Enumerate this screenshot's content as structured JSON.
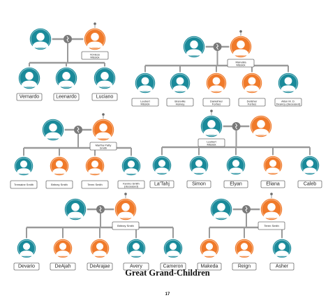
{
  "colors": {
    "male": "#1a8a9a",
    "female": "#f07a2a",
    "line": "#9a9a9a",
    "labelBorder": "#6e6e6e"
  },
  "families": [
    {
      "parents": [
        {
          "gender": "male",
          "name": ""
        },
        {
          "gender": "female",
          "name": "Voniece Missick"
        }
      ],
      "children": [
        {
          "gender": "male",
          "name": "Vernardo"
        },
        {
          "gender": "male",
          "name": "Leenardo"
        },
        {
          "gender": "male",
          "name": "Luciano"
        }
      ]
    },
    {
      "parents": [
        {
          "gender": "male",
          "name": ""
        },
        {
          "gender": "female",
          "name": "Marvalia Missick"
        }
      ],
      "children": [
        {
          "gender": "male",
          "name": "Leebert Missick"
        },
        {
          "gender": "male",
          "name": "Branville Harvey"
        },
        {
          "gender": "female",
          "name": "Danielhier Forbes"
        },
        {
          "gender": "female",
          "name": "Delisher Forbes"
        },
        {
          "gender": "male",
          "name": "Alton M. D. Deancy (deceased)"
        }
      ]
    },
    {
      "parents": [
        {
          "gender": "male",
          "name": ""
        },
        {
          "gender": "female",
          "name": "Martha Patty Smith"
        }
      ],
      "children": [
        {
          "gender": "male",
          "name": "Tremaine Smith"
        },
        {
          "gender": "female",
          "name": "Britney Smith"
        },
        {
          "gender": "female",
          "name": "Teren Smith"
        },
        {
          "gender": "male",
          "name": "Kevino Smith (deceased)"
        }
      ]
    },
    {
      "parents": [
        {
          "gender": "male",
          "name": "Leebert Missick"
        },
        {
          "gender": "female",
          "name": ""
        }
      ],
      "children": [
        {
          "gender": "male",
          "name": "La'Tahj"
        },
        {
          "gender": "male",
          "name": "Simon"
        },
        {
          "gender": "male",
          "name": "Elyan"
        },
        {
          "gender": "female",
          "name": "Eliana"
        },
        {
          "gender": "male",
          "name": "Caleb"
        }
      ]
    },
    {
      "parents": [
        {
          "gender": "male",
          "name": ""
        },
        {
          "gender": "female",
          "name": "Britney Smith"
        }
      ],
      "children": [
        {
          "gender": "male",
          "name": "Devario"
        },
        {
          "gender": "female",
          "name": "DeAjah"
        },
        {
          "gender": "female",
          "name": "DeArajae"
        },
        {
          "gender": "male",
          "name": "Avery"
        },
        {
          "gender": "male",
          "name": "Cameron"
        }
      ]
    },
    {
      "parents": [
        {
          "gender": "male",
          "name": ""
        },
        {
          "gender": "female",
          "name": "Teren Smith"
        }
      ],
      "children": [
        {
          "gender": "female",
          "name": "Makeda"
        },
        {
          "gender": "female",
          "name": "Reign"
        },
        {
          "gender": "male",
          "name": "Asher"
        }
      ]
    }
  ],
  "caption": "Great Grand-Children",
  "page_number": "17"
}
